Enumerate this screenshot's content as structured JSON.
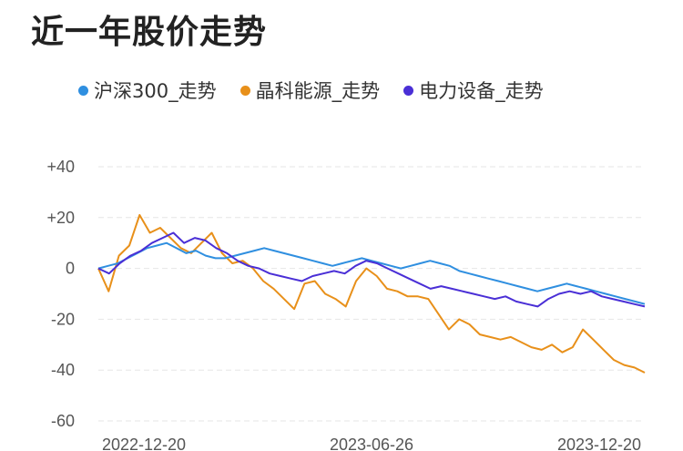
{
  "chart_data": {
    "type": "line",
    "title": "近一年股价走势",
    "y_ticks": [
      "+40",
      "+20",
      "0",
      "-20",
      "-40",
      "-60"
    ],
    "ylim": [
      -60,
      40
    ],
    "x_ticks": [
      "2022-12-20",
      "2023-06-26",
      "2023-12-20"
    ],
    "grid": true,
    "legend_position": "top",
    "series": [
      {
        "name": "沪深300_走势",
        "color": "#2f8fe0",
        "values": [
          0,
          1,
          2,
          4,
          6,
          8,
          9,
          10,
          8,
          6,
          7,
          5,
          4,
          4,
          5,
          6,
          7,
          8,
          7,
          6,
          5,
          4,
          3,
          2,
          1,
          2,
          3,
          4,
          3,
          2,
          1,
          0,
          1,
          2,
          3,
          2,
          1,
          -1,
          -2,
          -3,
          -4,
          -5,
          -6,
          -7,
          -8,
          -9,
          -8,
          -7,
          -6,
          -7,
          -8,
          -9,
          -10,
          -11,
          -12,
          -13,
          -14
        ]
      },
      {
        "name": "晶科能源_走势",
        "color": "#e8901a",
        "values": [
          0,
          -9,
          5,
          9,
          21,
          14,
          16,
          12,
          8,
          6,
          10,
          14,
          6,
          2,
          3,
          0,
          -5,
          -8,
          -12,
          -16,
          -6,
          -5,
          -10,
          -12,
          -15,
          -5,
          0,
          -3,
          -8,
          -9,
          -11,
          -11,
          -12,
          -18,
          -24,
          -20,
          -22,
          -26,
          -27,
          -28,
          -27,
          -29,
          -31,
          -32,
          -30,
          -33,
          -31,
          -24,
          -28,
          -32,
          -36,
          -38,
          -39,
          -41
        ]
      },
      {
        "name": "电力设备_走势",
        "color": "#4a2fd6",
        "values": [
          0,
          -2,
          2,
          5,
          7,
          10,
          12,
          14,
          10,
          12,
          11,
          8,
          6,
          3,
          1,
          0,
          -2,
          -3,
          -4,
          -5,
          -3,
          -2,
          -1,
          -2,
          1,
          3,
          2,
          0,
          -2,
          -4,
          -6,
          -8,
          -7,
          -8,
          -9,
          -10,
          -11,
          -12,
          -11,
          -13,
          -14,
          -15,
          -12,
          -10,
          -9,
          -10,
          -9,
          -11,
          -12,
          -13,
          -14,
          -15
        ]
      }
    ]
  }
}
